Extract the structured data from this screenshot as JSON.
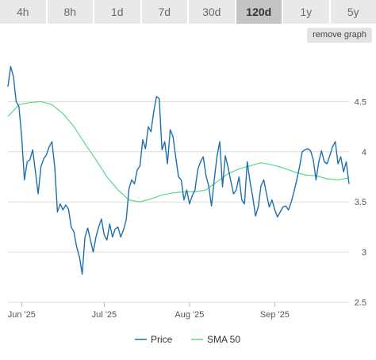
{
  "range_tabs": [
    {
      "label": "4h",
      "active": false
    },
    {
      "label": "8h",
      "active": false
    },
    {
      "label": "1d",
      "active": false
    },
    {
      "label": "7d",
      "active": false
    },
    {
      "label": "30d",
      "active": false
    },
    {
      "label": "120d",
      "active": true
    },
    {
      "label": "1y",
      "active": false
    },
    {
      "label": "5y",
      "active": false
    }
  ],
  "remove_graph_label": "remove graph",
  "colors": {
    "price": "#1f6fad",
    "sma": "#5bd68b",
    "grid": "#dcdcdc",
    "tab_bg": "#e9e9e9",
    "tab_active": "#c4c4c4"
  },
  "chart_data": {
    "type": "line",
    "x_ticks": [
      "Jun '25",
      "Jul '25",
      "Aug '25",
      "Sep '25"
    ],
    "x_tick_days": [
      5,
      35,
      66,
      97
    ],
    "x_range": [
      0,
      124
    ],
    "y_ticks": [
      "2.5",
      "3",
      "3.5",
      "4",
      "4.5"
    ],
    "y_tick_values": [
      2.5,
      3,
      3.5,
      4,
      4.5
    ],
    "ylim": [
      2.5,
      5.0
    ],
    "grid": "horizontal",
    "legend_position": "bottom-center",
    "series": [
      {
        "name": "Price",
        "color": "#1f6fad",
        "x": [
          0,
          1,
          2,
          3,
          4,
          5,
          6,
          7,
          8,
          9,
          10,
          11,
          12,
          13,
          14,
          15,
          16,
          17,
          18,
          19,
          20,
          21,
          22,
          23,
          24,
          25,
          26,
          27,
          28,
          29,
          30,
          31,
          32,
          33,
          34,
          35,
          36,
          37,
          38,
          39,
          40,
          41,
          42,
          43,
          44,
          45,
          46,
          47,
          48,
          49,
          50,
          51,
          52,
          53,
          54,
          55,
          56,
          57,
          58,
          59,
          60,
          61,
          62,
          63,
          64,
          65,
          66,
          67,
          68,
          69,
          70,
          71,
          72,
          73,
          74,
          75,
          76,
          77,
          78,
          79,
          80,
          81,
          82,
          83,
          84,
          85,
          86,
          87,
          88,
          89,
          90,
          91,
          92,
          93,
          94,
          95,
          96,
          97,
          98,
          99,
          100,
          101,
          102,
          103,
          104,
          105,
          106,
          107,
          108,
          109,
          110,
          111,
          112,
          113,
          114,
          115,
          116,
          117,
          118,
          119,
          120,
          121,
          122,
          123,
          124
        ],
        "values": [
          4.65,
          4.85,
          4.75,
          4.5,
          4.45,
          4.15,
          3.72,
          3.9,
          3.92,
          4.02,
          3.8,
          3.58,
          3.85,
          3.93,
          3.97,
          4.05,
          4.1,
          3.85,
          3.4,
          3.48,
          3.42,
          3.47,
          3.43,
          3.25,
          3.2,
          3.05,
          2.95,
          2.78,
          3.15,
          3.24,
          3.12,
          3.0,
          3.15,
          3.25,
          3.33,
          3.17,
          3.12,
          3.28,
          3.15,
          3.23,
          3.25,
          3.15,
          3.22,
          3.32,
          3.63,
          3.72,
          3.68,
          3.82,
          3.86,
          4.12,
          4.03,
          4.25,
          4.2,
          4.4,
          4.55,
          4.53,
          4.02,
          4.1,
          3.88,
          4.22,
          4.15,
          3.95,
          3.75,
          3.72,
          3.52,
          3.62,
          3.48,
          3.56,
          3.62,
          3.82,
          3.9,
          3.95,
          3.76,
          3.66,
          3.46,
          3.72,
          3.95,
          4.1,
          3.65,
          3.96,
          3.85,
          3.71,
          3.58,
          3.62,
          3.75,
          3.52,
          3.48,
          3.9,
          3.7,
          3.55,
          3.36,
          3.45,
          3.66,
          3.72,
          3.58,
          3.45,
          3.52,
          3.42,
          3.35,
          3.4,
          3.45,
          3.46,
          3.42,
          3.5,
          3.6,
          3.72,
          3.85,
          4.0,
          4.02,
          4.03,
          4.01,
          3.92,
          3.72,
          3.9,
          4.01,
          3.9,
          3.88,
          3.96,
          4.05,
          4.1,
          3.88,
          3.95,
          3.8,
          3.9,
          3.68
        ]
      },
      {
        "name": "SMA 50",
        "color": "#5bd68b",
        "x": [
          0,
          4,
          8,
          12,
          16,
          20,
          24,
          28,
          32,
          36,
          40,
          44,
          48,
          52,
          56,
          60,
          64,
          68,
          72,
          76,
          80,
          84,
          88,
          92,
          96,
          100,
          104,
          108,
          112,
          116,
          120,
          124
        ],
        "values": [
          4.35,
          4.47,
          4.49,
          4.5,
          4.47,
          4.38,
          4.25,
          4.08,
          3.92,
          3.75,
          3.62,
          3.52,
          3.5,
          3.53,
          3.57,
          3.59,
          3.6,
          3.6,
          3.62,
          3.7,
          3.78,
          3.83,
          3.86,
          3.89,
          3.87,
          3.84,
          3.8,
          3.77,
          3.76,
          3.73,
          3.72,
          3.74
        ]
      }
    ]
  }
}
